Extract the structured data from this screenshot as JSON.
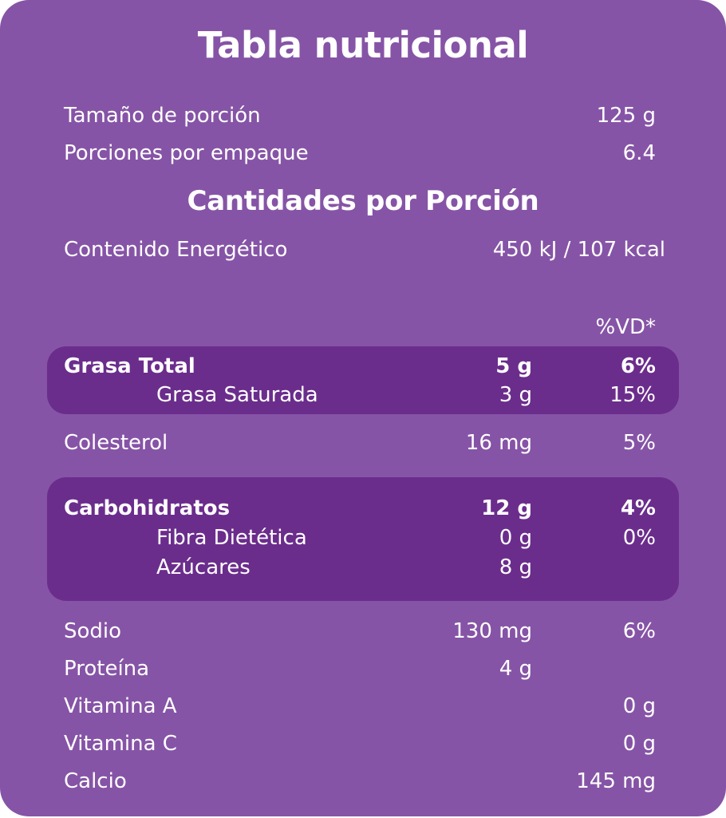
{
  "title": "Tabla nutricional",
  "serving": {
    "size_label": "Tamaño de porción",
    "size_value": "125 g",
    "per_pack_label": "Porciones por empaque",
    "per_pack_value": "6.4"
  },
  "section_title": "Cantidades por Porción",
  "energy": {
    "label": "Contenido Energético",
    "value": "450 kJ / 107 kcal"
  },
  "dv_header": "%VD*",
  "fat": {
    "total": {
      "label": "Grasa Total",
      "amount": "5 g",
      "dv": "6%"
    },
    "saturated": {
      "label": "Grasa Saturada",
      "amount": "3 g",
      "dv": "15%"
    }
  },
  "cholesterol": {
    "label": "Colesterol",
    "amount": "16 mg",
    "dv": "5%"
  },
  "carbs": {
    "total": {
      "label": "Carbohidratos",
      "amount": "12 g",
      "dv": "4%"
    },
    "fiber": {
      "label": "Fibra Dietética",
      "amount": "0 g",
      "dv": "0%"
    },
    "sugars": {
      "label": "Azúcares",
      "amount": "8 g"
    }
  },
  "sodium": {
    "label": "Sodio",
    "amount": "130 mg",
    "dv": "6%"
  },
  "protein": {
    "label": "Proteína",
    "amount": "4 g"
  },
  "vitamin_a": {
    "label": "Vitamina A",
    "value": "0 g"
  },
  "vitamin_c": {
    "label": "Vitamina C",
    "value": "0 g"
  },
  "calcium": {
    "label": "Calcio",
    "value": "145 mg"
  },
  "colors": {
    "background": "#8654a6",
    "highlight": "#6b2d8c",
    "text": "#ffffff"
  }
}
